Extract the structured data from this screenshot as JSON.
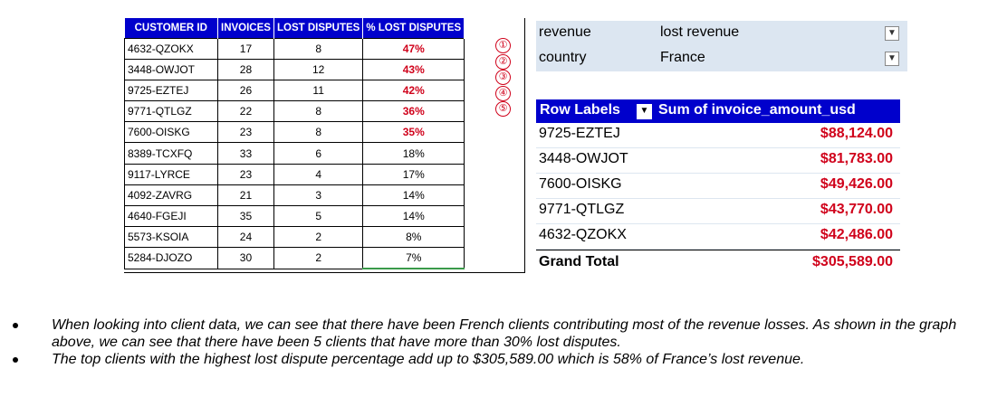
{
  "table": {
    "headers": [
      "CUSTOMER ID",
      "INVOICES",
      "LOST DISPUTES",
      "% LOST DISPUTES"
    ],
    "rows": [
      {
        "id": "4632-QZOKX",
        "invoices": "17",
        "lost": "8",
        "pct": "47%",
        "highlight": true
      },
      {
        "id": "3448-OWJOT",
        "invoices": "28",
        "lost": "12",
        "pct": "43%",
        "highlight": true
      },
      {
        "id": "9725-EZTEJ",
        "invoices": "26",
        "lost": "11",
        "pct": "42%",
        "highlight": true
      },
      {
        "id": "9771-QTLGZ",
        "invoices": "22",
        "lost": "8",
        "pct": "36%",
        "highlight": true
      },
      {
        "id": "7600-OISKG",
        "invoices": "23",
        "lost": "8",
        "pct": "35%",
        "highlight": true
      },
      {
        "id": "8389-TCXFQ",
        "invoices": "33",
        "lost": "6",
        "pct": "18%",
        "highlight": false
      },
      {
        "id": "9117-LYRCE",
        "invoices": "23",
        "lost": "4",
        "pct": "17%",
        "highlight": false
      },
      {
        "id": "4092-ZAVRG",
        "invoices": "21",
        "lost": "3",
        "pct": "14%",
        "highlight": false
      },
      {
        "id": "4640-FGEJI",
        "invoices": "35",
        "lost": "5",
        "pct": "14%",
        "highlight": false
      },
      {
        "id": "5573-KSOIA",
        "invoices": "24",
        "lost": "2",
        "pct": "8%",
        "highlight": false
      },
      {
        "id": "5284-DJOZO",
        "invoices": "30",
        "lost": "2",
        "pct": "7%",
        "highlight": false
      }
    ]
  },
  "circles": [
    "①",
    "②",
    "③",
    "④",
    "⑤"
  ],
  "filters": [
    {
      "key": "revenue",
      "value": "lost revenue"
    },
    {
      "key": "country",
      "value": "France"
    }
  ],
  "pivot": {
    "row_labels": "Row Labels",
    "sum_header": "Sum of invoice_amount_usd",
    "rows": [
      {
        "label": "9725-EZTEJ",
        "amount": "$88,124.00"
      },
      {
        "label": "3448-OWJOT",
        "amount": "$81,783.00"
      },
      {
        "label": "7600-OISKG",
        "amount": "$49,426.00"
      },
      {
        "label": "9771-QTLGZ",
        "amount": "$43,770.00"
      },
      {
        "label": "4632-QZOKX",
        "amount": "$42,486.00"
      }
    ],
    "total_label": "Grand Total",
    "total_amount": "$305,589.00"
  },
  "bullets": [
    "When looking into client data, we can see that there have been French clients contributing most of the revenue losses. As shown in the graph above, we can see that there have been 5 clients that have more than 30% lost disputes.",
    "The top clients with the highest lost dispute percentage add up to $305,589.00 which is 58% of France’s lost revenue."
  ],
  "colors": {
    "header_blue": "#0000cc",
    "accent_red": "#d0021b",
    "filter_bg": "#dce6f1"
  },
  "icons": {
    "filter": "filter-dropdown-icon",
    "sort": "sort-filter-icon"
  }
}
